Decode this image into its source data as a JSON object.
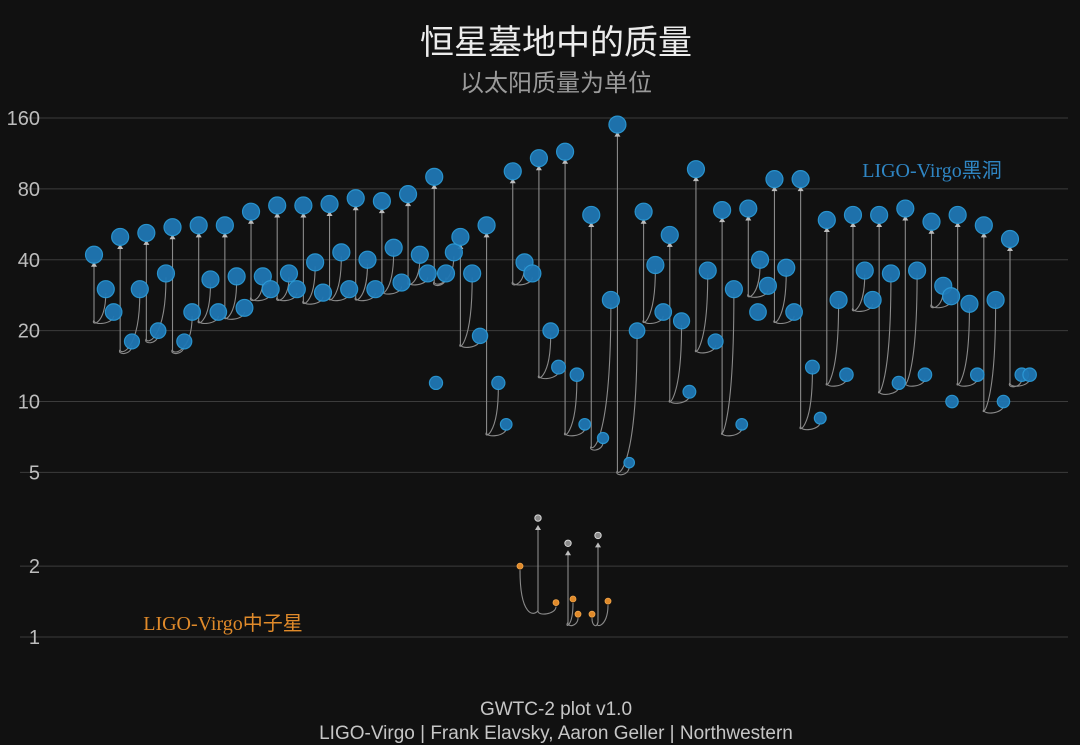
{
  "chart_data": {
    "type": "scatter",
    "title": "恒星墓地中的质量",
    "subtitle": "以太阳质量为单位",
    "yscale": "log",
    "ylim": [
      0.85,
      200
    ],
    "yticks": [
      1,
      2,
      5,
      10,
      20,
      40,
      80,
      160
    ],
    "grid": true,
    "series": [
      {
        "name": "LIGO-Virgo黑洞",
        "color": "#1f77b4"
      },
      {
        "name": "LIGO-Virgo中子星",
        "color": "#e08a2a"
      }
    ],
    "events": [
      {
        "m1": 30,
        "m2": 24,
        "final": 42,
        "type": "bh"
      },
      {
        "m1": 18,
        "m2": 30,
        "final": 50,
        "type": "bh"
      },
      {
        "m1": 20,
        "m2": 35,
        "final": 52,
        "type": "bh"
      },
      {
        "m1": 18,
        "m2": 24,
        "final": 55,
        "type": "bh"
      },
      {
        "m1": 33,
        "m2": 24,
        "final": 56,
        "type": "bh"
      },
      {
        "m1": 34,
        "m2": 25,
        "final": 56,
        "type": "bh"
      },
      {
        "m1": 34,
        "m2": 30,
        "final": 64,
        "type": "bh"
      },
      {
        "m1": 35,
        "m2": 30,
        "final": 68,
        "type": "bh"
      },
      {
        "m1": 39,
        "m2": 29,
        "final": 68,
        "type": "bh"
      },
      {
        "m1": 43,
        "m2": 30,
        "final": 69,
        "type": "bh"
      },
      {
        "m1": 40,
        "m2": 30,
        "final": 73,
        "type": "bh"
      },
      {
        "m1": 45,
        "m2": 32,
        "final": 71,
        "type": "bh"
      },
      {
        "m1": 42,
        "m2": 35,
        "final": 76,
        "type": "bh"
      },
      {
        "m1": 35,
        "m2": 43,
        "final": 90,
        "type": "bh"
      },
      {
        "m1": 35,
        "m2": 19,
        "final": 50,
        "type": "bh"
      },
      {
        "m1": 12,
        "m2": 8,
        "final": 56,
        "type": "bh"
      },
      {
        "m1": 39,
        "m2": 35,
        "final": 95,
        "type": "bh"
      },
      {
        "m1": 20,
        "m2": 14,
        "final": 108,
        "type": "bh"
      },
      {
        "m1": 13,
        "m2": 8,
        "final": 115,
        "type": "bh"
      },
      {
        "m1": 7,
        "m2": 27,
        "final": 62,
        "type": "bh"
      },
      {
        "m1": 5.5,
        "m2": 20,
        "final": 150,
        "type": "bh"
      },
      {
        "m1": 38,
        "m2": 24,
        "final": 64,
        "type": "bh"
      },
      {
        "m1": 22,
        "m2": 11,
        "final": 51,
        "type": "bh"
      },
      {
        "m1": 36,
        "m2": 18,
        "final": 97,
        "type": "bh"
      },
      {
        "m1": 30,
        "m2": 8,
        "final": 65,
        "type": "bh"
      },
      {
        "m1": 40,
        "m2": 31,
        "final": 66,
        "type": "bh"
      },
      {
        "m1": 37,
        "m2": 24,
        "final": 88,
        "type": "bh"
      },
      {
        "m1": 14,
        "m2": 8.5,
        "final": 88,
        "type": "bh"
      },
      {
        "m1": 27,
        "m2": 13,
        "final": 59,
        "type": "bh"
      },
      {
        "m1": 36,
        "m2": 27,
        "final": 62,
        "type": "bh"
      },
      {
        "m1": 35,
        "m2": 12,
        "final": 62,
        "type": "bh"
      },
      {
        "m1": 36,
        "m2": 13,
        "final": 66,
        "type": "bh"
      },
      {
        "m1": 31,
        "m2": 28,
        "final": 58,
        "type": "bh"
      },
      {
        "m1": 26,
        "m2": 13,
        "final": 62,
        "type": "bh"
      },
      {
        "m1": 27,
        "m2": 10,
        "final": 56,
        "type": "bh"
      },
      {
        "m1": 13,
        "m2": 13,
        "final": 49,
        "type": "bh"
      }
    ],
    "singles": [
      {
        "m": 12,
        "type": "bh"
      },
      {
        "m": 24,
        "type": "bh"
      },
      {
        "m": 10,
        "type": "bh"
      }
    ],
    "ns_events": [
      {
        "m1": 2.0,
        "m2": 1.4,
        "final": 3.2
      },
      {
        "m1": 1.45,
        "m2": 1.25,
        "final": 2.5
      },
      {
        "m1": 1.42,
        "m2": 1.25,
        "final": 2.7
      }
    ],
    "labels": {
      "bh": "LIGO-Virgo黑洞",
      "ns": "LIGO-Virgo中子星"
    },
    "footer": [
      "GWTC-2 plot v1.0",
      "LIGO-Virgo | Frank Elavsky, Aaron Geller | Northwestern"
    ]
  }
}
